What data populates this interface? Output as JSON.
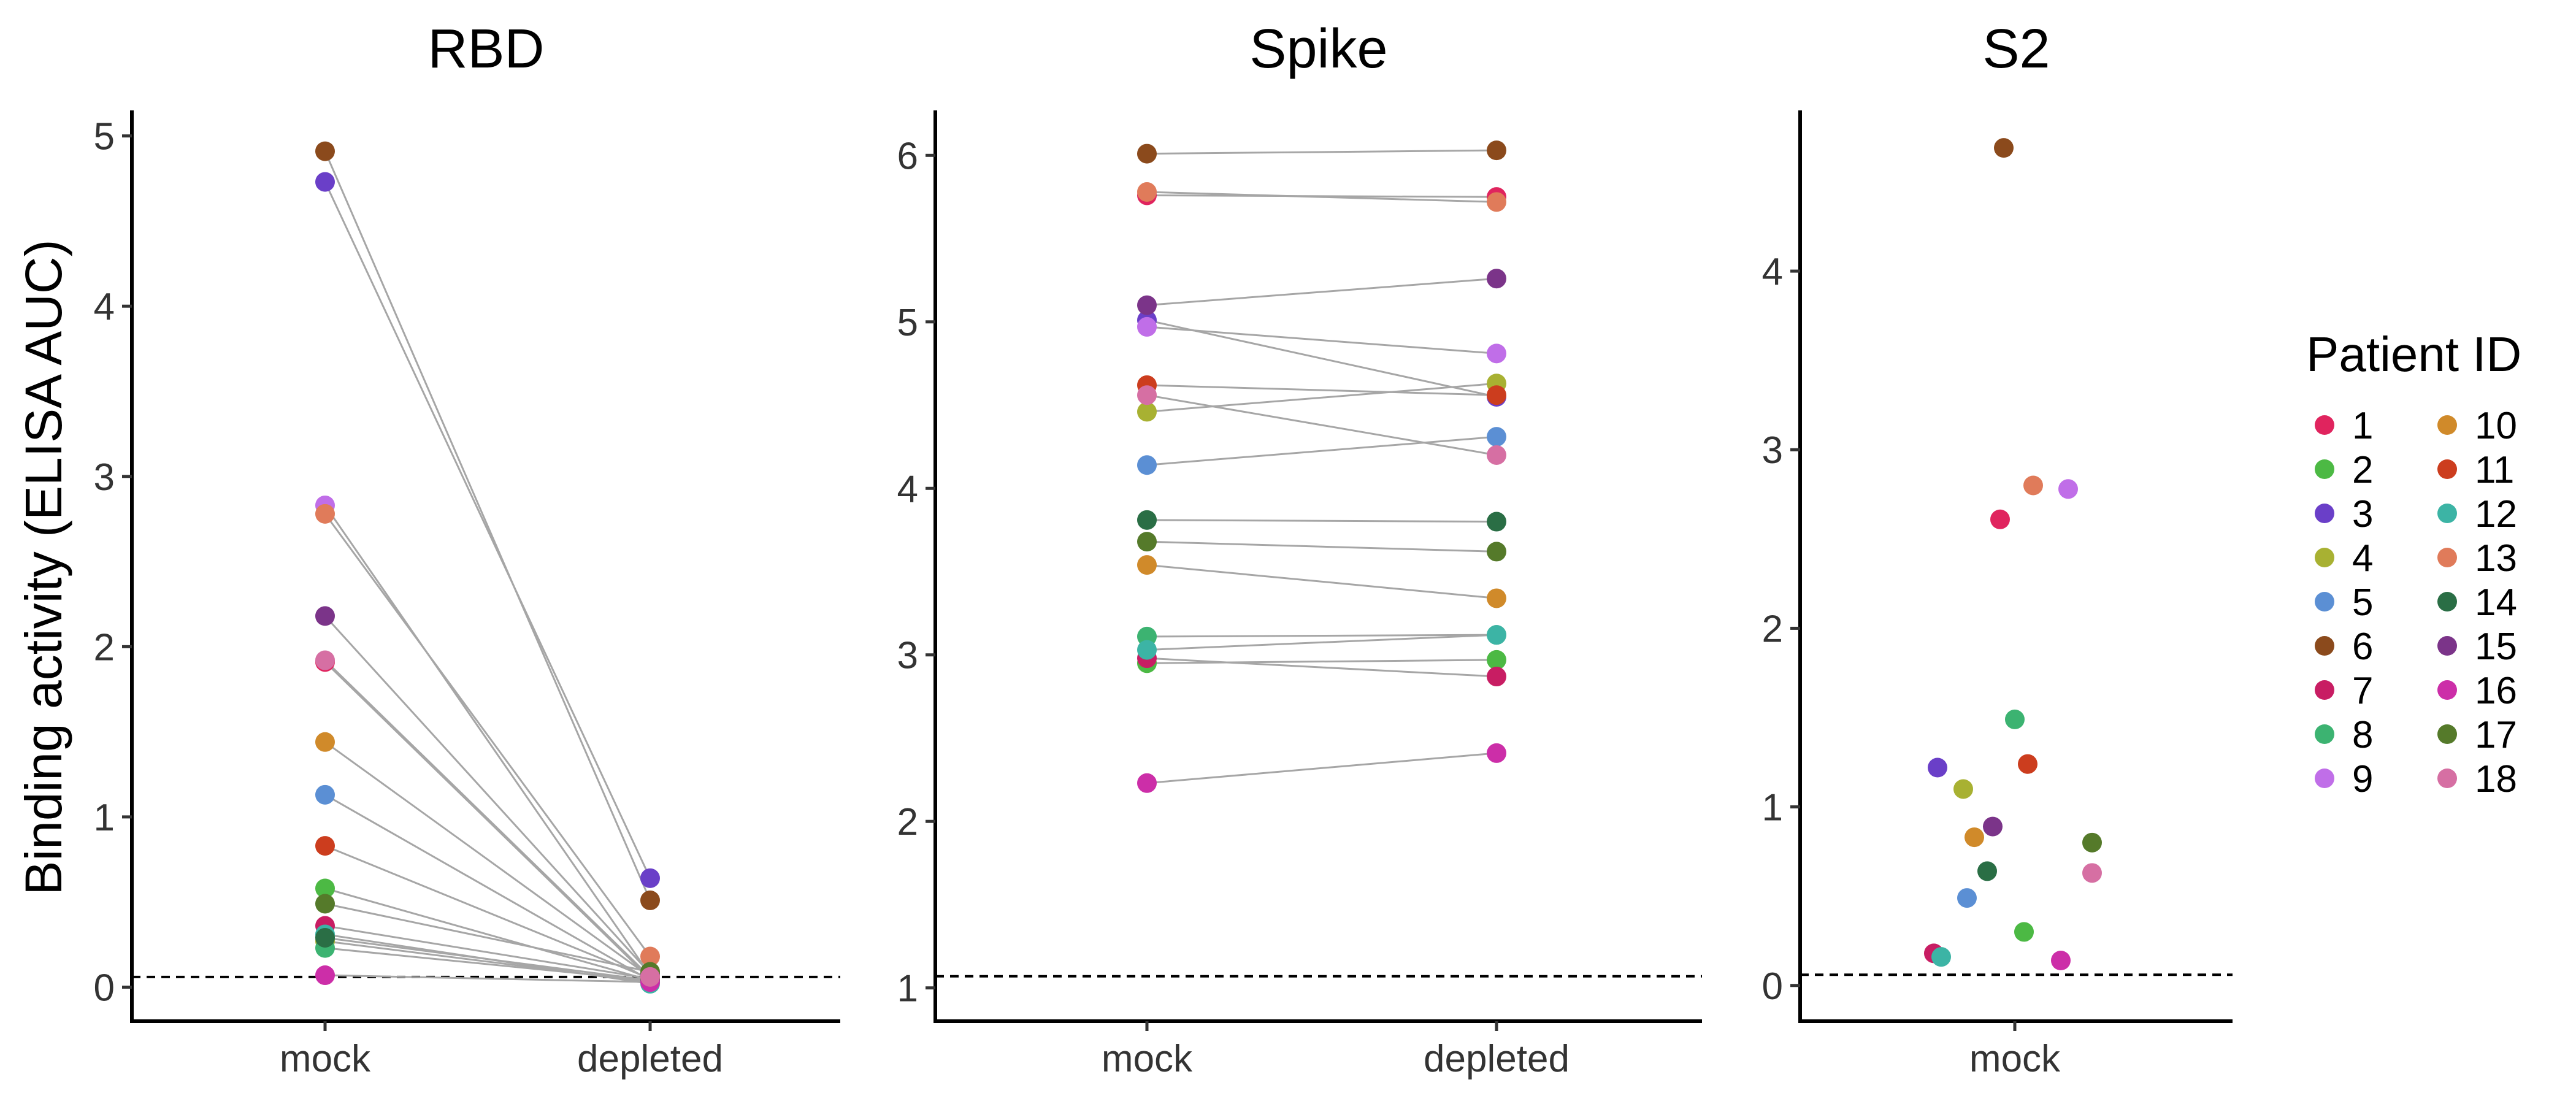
{
  "chart_data": [
    {
      "type": "scatter",
      "title": "RBD",
      "ylabel": "Binding activity (ELISA AUC)",
      "categories": [
        "mock",
        "depleted"
      ],
      "ylim": [
        -0.2,
        5.15
      ],
      "yticks": [
        0,
        1,
        2,
        3,
        4,
        5
      ],
      "reference_line": 0.06,
      "series": [
        {
          "patient": "1",
          "values": [
            1.91,
            0.05
          ]
        },
        {
          "patient": "2",
          "values": [
            0.58,
            0.04
          ]
        },
        {
          "patient": "3",
          "values": [
            4.73,
            0.64
          ]
        },
        {
          "patient": "4",
          "values": [
            0.27,
            0.03
          ]
        },
        {
          "patient": "5",
          "values": [
            1.13,
            0.04
          ]
        },
        {
          "patient": "6",
          "values": [
            4.91,
            0.51
          ]
        },
        {
          "patient": "7",
          "values": [
            0.36,
            0.05
          ]
        },
        {
          "patient": "8",
          "values": [
            0.23,
            0.04
          ]
        },
        {
          "patient": "9",
          "values": [
            2.83,
            0.07
          ]
        },
        {
          "patient": "10",
          "values": [
            1.44,
            0.06
          ]
        },
        {
          "patient": "11",
          "values": [
            0.83,
            0.05
          ]
        },
        {
          "patient": "12",
          "values": [
            0.31,
            0.02
          ]
        },
        {
          "patient": "13",
          "values": [
            2.78,
            0.18
          ]
        },
        {
          "patient": "14",
          "values": [
            0.29,
            0.04
          ]
        },
        {
          "patient": "15",
          "values": [
            2.18,
            0.08
          ]
        },
        {
          "patient": "16",
          "values": [
            0.07,
            0.03
          ]
        },
        {
          "patient": "17",
          "values": [
            0.49,
            0.09
          ]
        },
        {
          "patient": "18",
          "values": [
            1.92,
            0.06
          ]
        }
      ]
    },
    {
      "type": "scatter",
      "title": "Spike",
      "ylabel": "",
      "categories": [
        "mock",
        "depleted"
      ],
      "ylim": [
        0.8,
        6.27
      ],
      "yticks": [
        1,
        2,
        3,
        4,
        5,
        6
      ],
      "reference_line": 1.07,
      "series": [
        {
          "patient": "1",
          "values": [
            5.76,
            5.75
          ]
        },
        {
          "patient": "2",
          "values": [
            2.95,
            2.97
          ]
        },
        {
          "patient": "3",
          "values": [
            5.01,
            4.55
          ]
        },
        {
          "patient": "4",
          "values": [
            4.46,
            4.63
          ]
        },
        {
          "patient": "5",
          "values": [
            4.14,
            4.31
          ]
        },
        {
          "patient": "6",
          "values": [
            6.01,
            6.03
          ]
        },
        {
          "patient": "7",
          "values": [
            2.98,
            2.87
          ]
        },
        {
          "patient": "8",
          "values": [
            3.11,
            3.12
          ]
        },
        {
          "patient": "9",
          "values": [
            4.97,
            4.81
          ]
        },
        {
          "patient": "10",
          "values": [
            3.54,
            3.34
          ]
        },
        {
          "patient": "11",
          "values": [
            4.62,
            4.56
          ]
        },
        {
          "patient": "12",
          "values": [
            3.03,
            3.12
          ]
        },
        {
          "patient": "13",
          "values": [
            5.78,
            5.72
          ]
        },
        {
          "patient": "14",
          "values": [
            3.81,
            3.8
          ]
        },
        {
          "patient": "15",
          "values": [
            5.1,
            5.26
          ]
        },
        {
          "patient": "16",
          "values": [
            2.23,
            2.41
          ]
        },
        {
          "patient": "17",
          "values": [
            3.68,
            3.62
          ]
        },
        {
          "patient": "18",
          "values": [
            4.56,
            4.2
          ]
        }
      ]
    },
    {
      "type": "scatter",
      "title": "S2",
      "ylabel": "",
      "categories": [
        "mock"
      ],
      "ylim": [
        -0.2,
        4.9
      ],
      "yticks": [
        0,
        1,
        2,
        3,
        4
      ],
      "reference_line": 0.06,
      "series": [
        {
          "patient": "1",
          "values": [
            2.61
          ]
        },
        {
          "patient": "2",
          "values": [
            0.3
          ]
        },
        {
          "patient": "3",
          "values": [
            1.22
          ]
        },
        {
          "patient": "4",
          "values": [
            1.1
          ]
        },
        {
          "patient": "5",
          "values": [
            0.49
          ]
        },
        {
          "patient": "6",
          "values": [
            4.69
          ]
        },
        {
          "patient": "7",
          "values": [
            0.18
          ]
        },
        {
          "patient": "8",
          "values": [
            1.49
          ]
        },
        {
          "patient": "9",
          "values": [
            2.78
          ]
        },
        {
          "patient": "10",
          "values": [
            0.83
          ]
        },
        {
          "patient": "11",
          "values": [
            1.24
          ]
        },
        {
          "patient": "12",
          "values": [
            0.16
          ]
        },
        {
          "patient": "13",
          "values": [
            2.8
          ]
        },
        {
          "patient": "14",
          "values": [
            0.64
          ]
        },
        {
          "patient": "15",
          "values": [
            0.89
          ]
        },
        {
          "patient": "16",
          "values": [
            0.14
          ]
        },
        {
          "patient": "17",
          "values": [
            0.8
          ]
        },
        {
          "patient": "18",
          "values": [
            0.63
          ]
        }
      ]
    }
  ],
  "legend": {
    "title": "Patient ID",
    "items": [
      {
        "label": "1",
        "color": "#e0245e"
      },
      {
        "label": "2",
        "color": "#4cb944"
      },
      {
        "label": "3",
        "color": "#6a3fc8"
      },
      {
        "label": "4",
        "color": "#a8b132"
      },
      {
        "label": "5",
        "color": "#5b8fd4"
      },
      {
        "label": "6",
        "color": "#8b4a1c"
      },
      {
        "label": "7",
        "color": "#c81d63"
      },
      {
        "label": "8",
        "color": "#3cb371"
      },
      {
        "label": "9",
        "color": "#c06ee8"
      },
      {
        "label": "10",
        "color": "#d08a2a"
      },
      {
        "label": "11",
        "color": "#cc3d1e"
      },
      {
        "label": "12",
        "color": "#3cb4a5"
      },
      {
        "label": "13",
        "color": "#e07b5a"
      },
      {
        "label": "14",
        "color": "#2a6e45"
      },
      {
        "label": "15",
        "color": "#7b3489"
      },
      {
        "label": "16",
        "color": "#cc2ea8"
      },
      {
        "label": "17",
        "color": "#557a2a"
      },
      {
        "label": "18",
        "color": "#d66fa3"
      }
    ]
  },
  "s2_jitter": [
    -0.08,
    0.05,
    -0.42,
    -0.28,
    -0.26,
    -0.06,
    -0.44,
    0.0,
    0.29,
    -0.22,
    0.07,
    -0.4,
    0.1,
    -0.15,
    -0.12,
    0.25,
    0.42,
    0.42
  ]
}
